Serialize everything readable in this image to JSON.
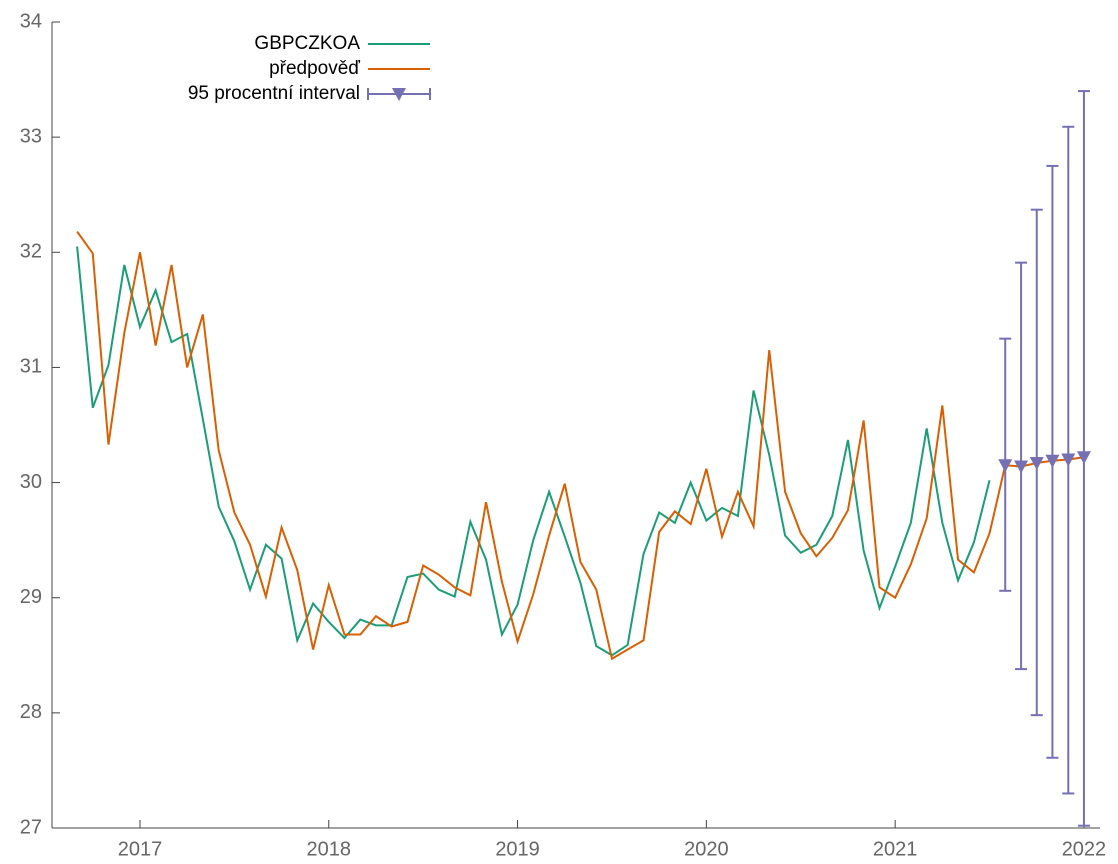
{
  "chart_data": {
    "type": "line",
    "x": [
      2016.667,
      2016.75,
      2016.833,
      2016.917,
      2017,
      2017.083,
      2017.167,
      2017.25,
      2017.333,
      2017.417,
      2017.5,
      2017.583,
      2017.667,
      2017.75,
      2017.833,
      2017.917,
      2018,
      2018.083,
      2018.167,
      2018.25,
      2018.333,
      2018.417,
      2018.5,
      2018.583,
      2018.667,
      2018.75,
      2018.833,
      2018.917,
      2019,
      2019.083,
      2019.167,
      2019.25,
      2019.333,
      2019.417,
      2019.5,
      2019.583,
      2019.667,
      2019.75,
      2019.833,
      2019.917,
      2020,
      2020.083,
      2020.167,
      2020.25,
      2020.333,
      2020.417,
      2020.5,
      2020.583,
      2020.667,
      2020.75,
      2020.833,
      2020.917,
      2021,
      2021.083,
      2021.167,
      2021.25,
      2021.333,
      2021.417,
      2021.5,
      2021.583,
      2021.667,
      2021.75,
      2021.833,
      2021.917,
      2022
    ],
    "series": [
      {
        "name": "GBPCZKOA",
        "color": "#1b9e77",
        "values": [
          32.05,
          30.65,
          31.02,
          31.89,
          31.35,
          31.67,
          31.22,
          31.29,
          30.55,
          29.79,
          29.49,
          29.07,
          29.46,
          29.34,
          28.63,
          28.95,
          28.79,
          28.65,
          28.81,
          28.76,
          28.76,
          29.18,
          29.21,
          29.07,
          29.01,
          29.66,
          29.33,
          28.68,
          28.94,
          29.5,
          29.92,
          29.53,
          29.13,
          28.58,
          28.5,
          28.59,
          29.38,
          29.74,
          29.65,
          30.0,
          29.67,
          29.78,
          29.71,
          30.8,
          30.24,
          29.54,
          29.39,
          29.46,
          29.71,
          30.37,
          29.41,
          28.91,
          29.27,
          29.65,
          30.47,
          29.65,
          29.15,
          29.48,
          30.02,
          null,
          null,
          null,
          null,
          null,
          null
        ]
      },
      {
        "name": "předpověď",
        "color": "#d95f02",
        "values": [
          32.18,
          31.99,
          30.33,
          31.3,
          32.0,
          31.19,
          31.89,
          31.0,
          31.46,
          30.28,
          29.74,
          29.46,
          29.01,
          29.61,
          29.24,
          28.55,
          29.11,
          28.68,
          28.68,
          28.84,
          28.75,
          28.79,
          29.28,
          29.2,
          29.09,
          29.02,
          29.83,
          29.14,
          28.62,
          29.03,
          29.54,
          29.99,
          29.31,
          29.07,
          28.47,
          28.55,
          28.63,
          29.57,
          29.75,
          29.64,
          30.12,
          29.53,
          29.92,
          29.62,
          31.15,
          29.92,
          29.56,
          29.36,
          29.52,
          29.76,
          30.54,
          29.09,
          29.0,
          29.29,
          29.69,
          30.67,
          29.33,
          29.22,
          29.56,
          30.15,
          30.14,
          30.17,
          30.19,
          30.2,
          30.22
        ]
      }
    ],
    "interval": {
      "name": "95 procentní interval",
      "color": "#7570b3",
      "x": [
        2021.583,
        2021.667,
        2021.75,
        2021.833,
        2021.917,
        2022
      ],
      "values": [
        30.15,
        30.14,
        30.17,
        30.19,
        30.2,
        30.22
      ],
      "lower": [
        29.06,
        28.38,
        27.98,
        27.61,
        27.3,
        27.02
      ],
      "upper": [
        31.25,
        31.91,
        32.37,
        32.75,
        33.09,
        33.4
      ]
    },
    "xlim": [
      2016.534,
      2022.085
    ],
    "xticks": [
      2017,
      2018,
      2019,
      2020,
      2021,
      2022
    ],
    "ylim": [
      27,
      34
    ],
    "yticks": [
      27,
      28,
      29,
      30,
      31,
      32,
      33,
      34
    ]
  }
}
